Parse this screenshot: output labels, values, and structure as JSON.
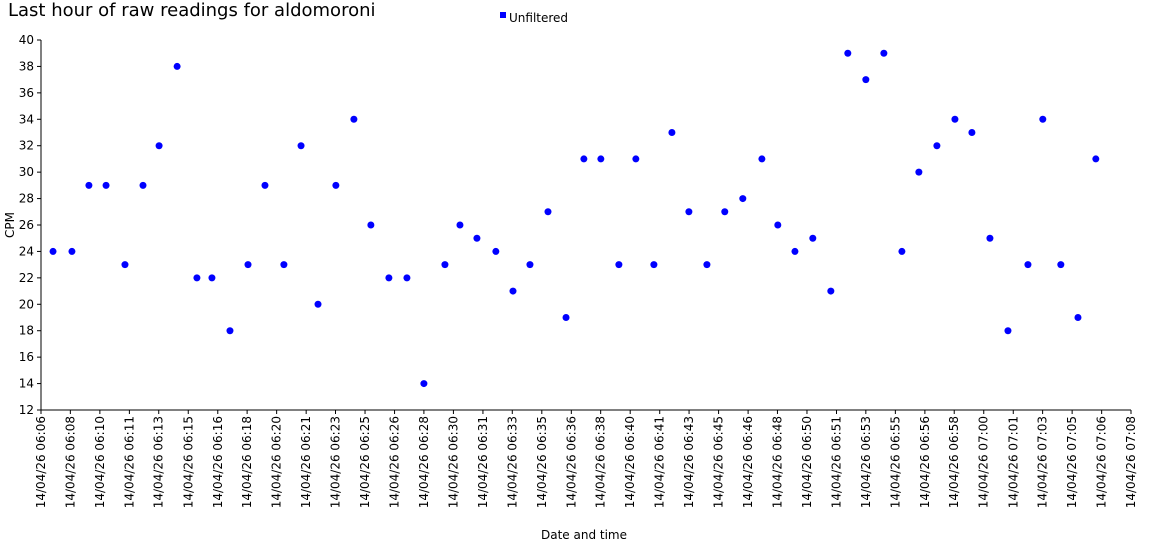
{
  "chart_data": {
    "type": "scatter",
    "title": "Last hour of raw readings for aldomoroni",
    "x_label": "Date and time",
    "y_label": "CPM",
    "series": [
      {
        "name": "Unfiltered",
        "color": "#0000ff",
        "x": [
          367.35,
          368.42,
          369.38,
          370.35,
          371.42,
          372.44,
          373.35,
          374.37,
          375.49,
          376.34,
          377.36,
          378.38,
          379.34,
          380.41,
          381.38,
          382.34,
          383.35,
          384.37,
          385.33,
          386.35,
          387.37,
          388.33,
          389.52,
          390.37,
          391.33,
          392.4,
          393.37,
          394.33,
          395.35,
          396.37,
          397.38,
          398.34,
          399.36,
          400.32,
          401.34,
          402.36,
          403.32,
          404.34,
          405.35,
          406.37,
          407.45,
          408.35,
          409.32,
          410.33,
          411.35,
          412.31,
          413.33,
          414.35,
          415.37,
          416.33,
          417.35,
          418.37,
          419.33,
          420.35,
          421.37,
          422.5,
          423.34,
          424.36,
          425.33,
          426.34
        ],
        "values": [
          24,
          24,
          29,
          29,
          23,
          29,
          32,
          38,
          22,
          22,
          18,
          23,
          29,
          23,
          32,
          20,
          29,
          34,
          26,
          22,
          22,
          14,
          23,
          26,
          25,
          24,
          21,
          23,
          27,
          19,
          31,
          31,
          23,
          31,
          23,
          33,
          27,
          23,
          27,
          28,
          31,
          26,
          24,
          25,
          21,
          39,
          37,
          39,
          24,
          30,
          32,
          34,
          33,
          25,
          18,
          23,
          34,
          23,
          19,
          31
        ]
      }
    ],
    "xlim": [
      366.67,
      428.33
    ],
    "xticks": [
      {
        "value": 366.67,
        "label": "14/04/26 06:06"
      },
      {
        "value": 368.33,
        "label": "14/04/26 06:08"
      },
      {
        "value": 370,
        "label": "14/04/26 06:10"
      },
      {
        "value": 371.67,
        "label": "14/04/26 06:11"
      },
      {
        "value": 373.33,
        "label": "14/04/26 06:13"
      },
      {
        "value": 375,
        "label": "14/04/26 06:15"
      },
      {
        "value": 376.67,
        "label": "14/04/26 06:16"
      },
      {
        "value": 378.33,
        "label": "14/04/26 06:18"
      },
      {
        "value": 380,
        "label": "14/04/26 06:20"
      },
      {
        "value": 381.67,
        "label": "14/04/26 06:21"
      },
      {
        "value": 383.33,
        "label": "14/04/26 06:23"
      },
      {
        "value": 385,
        "label": "14/04/26 06:25"
      },
      {
        "value": 386.67,
        "label": "14/04/26 06:26"
      },
      {
        "value": 388.33,
        "label": "14/04/26 06:28"
      },
      {
        "value": 390,
        "label": "14/04/26 06:30"
      },
      {
        "value": 391.67,
        "label": "14/04/26 06:31"
      },
      {
        "value": 393.33,
        "label": "14/04/26 06:33"
      },
      {
        "value": 395,
        "label": "14/04/26 06:35"
      },
      {
        "value": 396.67,
        "label": "14/04/26 06:36"
      },
      {
        "value": 398.33,
        "label": "14/04/26 06:38"
      },
      {
        "value": 400,
        "label": "14/04/26 06:40"
      },
      {
        "value": 401.67,
        "label": "14/04/26 06:41"
      },
      {
        "value": 403.33,
        "label": "14/04/26 06:43"
      },
      {
        "value": 405,
        "label": "14/04/26 06:45"
      },
      {
        "value": 406.67,
        "label": "14/04/26 06:46"
      },
      {
        "value": 408.33,
        "label": "14/04/26 06:48"
      },
      {
        "value": 410,
        "label": "14/04/26 06:50"
      },
      {
        "value": 411.67,
        "label": "14/04/26 06:51"
      },
      {
        "value": 413.33,
        "label": "14/04/26 06:53"
      },
      {
        "value": 415,
        "label": "14/04/26 06:55"
      },
      {
        "value": 416.67,
        "label": "14/04/26 06:56"
      },
      {
        "value": 418.33,
        "label": "14/04/26 06:58"
      },
      {
        "value": 420,
        "label": "14/04/26 07:00"
      },
      {
        "value": 421.67,
        "label": "14/04/26 07:01"
      },
      {
        "value": 423.33,
        "label": "14/04/26 07:03"
      },
      {
        "value": 425,
        "label": "14/04/26 07:05"
      },
      {
        "value": 426.67,
        "label": "14/04/26 07:06"
      },
      {
        "value": 428.33,
        "label": "14/04/26 07:08"
      }
    ],
    "ylim": [
      12,
      40
    ],
    "yticks": [
      12,
      14,
      16,
      18,
      20,
      22,
      24,
      26,
      28,
      30,
      32,
      34,
      36,
      38,
      40
    ],
    "legend": "top"
  }
}
